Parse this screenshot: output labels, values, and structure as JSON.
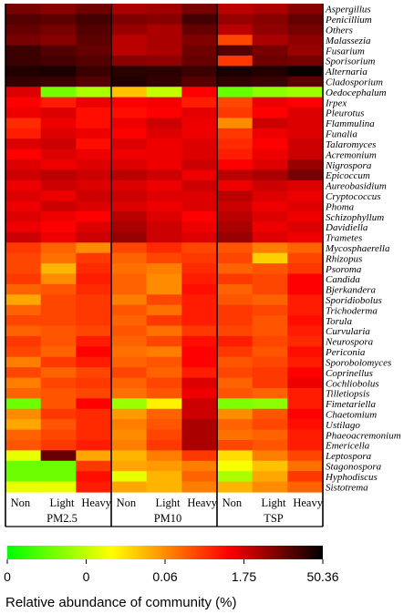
{
  "chart_data": {
    "type": "heatmap",
    "groups": [
      {
        "name": "PM2.5",
        "columns": [
          "Non",
          "Light",
          "Heavy"
        ]
      },
      {
        "name": "PM10",
        "columns": [
          "Non",
          "Light",
          "Heavy"
        ]
      },
      {
        "name": "TSP",
        "columns": [
          "Non",
          "Light",
          "Heavy"
        ]
      }
    ],
    "rows": [
      "Aspergillus",
      "Penicillium",
      "Others",
      "Malassezia",
      "Fusarium",
      "Sporisorium",
      "Alternaria",
      "Cladosporium",
      "Oedocephalum",
      "Irpex",
      "Pleurotus",
      "Flammulina",
      "Funalia",
      "Talaromyces",
      "Acremonium",
      "Nigrospora",
      "Epicoccum",
      "Aureobasidium",
      "Cryptococcus",
      "Phoma",
      "Schizophyllum",
      "Davidiella",
      "Trametes",
      "Mycosphaerella",
      "Rhizopus",
      "Psoroma",
      "Candida",
      "Bjerkandera",
      "Sporidiobolus",
      "Trichoderma",
      "Torula",
      "Curvularia",
      "Neurospora",
      "Periconia",
      "Sporobolomyces",
      "Coprinellus",
      "Cochliobolus",
      "Tilletiopsis",
      "Fimetariella",
      "Chaetomium",
      "Ustilago",
      "Phaeoacremonium",
      "Emericella",
      "Leptospora",
      "Stagonospora",
      "Hyphodiscus",
      "Sistotrema"
    ],
    "values": [
      [
        0.86,
        0.84,
        0.87,
        0.8,
        0.81,
        0.86,
        0.78,
        0.8,
        0.84
      ],
      [
        0.9,
        0.89,
        0.92,
        0.85,
        0.84,
        0.92,
        0.82,
        0.84,
        0.88
      ],
      [
        0.88,
        0.86,
        0.9,
        0.82,
        0.8,
        0.88,
        0.78,
        0.83,
        0.86
      ],
      [
        0.86,
        0.84,
        0.89,
        0.78,
        0.8,
        0.85,
        0.6,
        0.8,
        0.83
      ],
      [
        0.93,
        0.9,
        0.88,
        0.78,
        0.8,
        0.87,
        0.9,
        0.86,
        0.82
      ],
      [
        0.93,
        0.92,
        0.9,
        0.84,
        0.83,
        0.88,
        0.62,
        0.87,
        0.86
      ],
      [
        0.96,
        0.97,
        0.93,
        0.95,
        0.95,
        0.93,
        0.97,
        0.96,
        0.99
      ],
      [
        0.94,
        0.93,
        0.9,
        0.96,
        0.94,
        0.9,
        0.94,
        0.93,
        0.89
      ],
      [
        0.74,
        0.15,
        0.22,
        0.42,
        0.25,
        0.7,
        0.13,
        0.18,
        0.2
      ],
      [
        0.7,
        0.66,
        0.72,
        0.7,
        0.71,
        0.66,
        0.6,
        0.72,
        0.7
      ],
      [
        0.72,
        0.74,
        0.68,
        0.68,
        0.7,
        0.73,
        0.62,
        0.7,
        0.74
      ],
      [
        0.64,
        0.72,
        0.68,
        0.72,
        0.76,
        0.72,
        0.5,
        0.76,
        0.74
      ],
      [
        0.66,
        0.74,
        0.72,
        0.7,
        0.74,
        0.72,
        0.62,
        0.72,
        0.74
      ],
      [
        0.74,
        0.76,
        0.68,
        0.74,
        0.72,
        0.74,
        0.64,
        0.7,
        0.76
      ],
      [
        0.7,
        0.74,
        0.72,
        0.72,
        0.72,
        0.74,
        0.66,
        0.72,
        0.76
      ],
      [
        0.74,
        0.72,
        0.74,
        0.74,
        0.72,
        0.76,
        0.7,
        0.74,
        0.82
      ],
      [
        0.76,
        0.78,
        0.76,
        0.78,
        0.76,
        0.72,
        0.78,
        0.8,
        0.86
      ],
      [
        0.72,
        0.76,
        0.74,
        0.74,
        0.72,
        0.76,
        0.72,
        0.76,
        0.74
      ],
      [
        0.74,
        0.72,
        0.76,
        0.76,
        0.74,
        0.74,
        0.78,
        0.74,
        0.72
      ],
      [
        0.72,
        0.76,
        0.74,
        0.74,
        0.72,
        0.74,
        0.76,
        0.72,
        0.74
      ],
      [
        0.74,
        0.72,
        0.7,
        0.78,
        0.74,
        0.7,
        0.78,
        0.74,
        0.72
      ],
      [
        0.72,
        0.7,
        0.74,
        0.8,
        0.76,
        0.72,
        0.8,
        0.72,
        0.74
      ],
      [
        0.76,
        0.72,
        0.76,
        0.82,
        0.76,
        0.74,
        0.82,
        0.74,
        0.72
      ],
      [
        0.62,
        0.56,
        0.5,
        0.6,
        0.64,
        0.6,
        0.58,
        0.52,
        0.56
      ],
      [
        0.6,
        0.54,
        0.62,
        0.56,
        0.6,
        0.62,
        0.6,
        0.4,
        0.6
      ],
      [
        0.6,
        0.44,
        0.64,
        0.54,
        0.52,
        0.64,
        0.56,
        0.58,
        0.62
      ],
      [
        0.62,
        0.5,
        0.66,
        0.56,
        0.5,
        0.66,
        0.62,
        0.6,
        0.7
      ],
      [
        0.56,
        0.58,
        0.64,
        0.56,
        0.5,
        0.68,
        0.56,
        0.6,
        0.7
      ],
      [
        0.46,
        0.6,
        0.62,
        0.52,
        0.6,
        0.66,
        0.58,
        0.56,
        0.66
      ],
      [
        0.56,
        0.6,
        0.62,
        0.58,
        0.54,
        0.66,
        0.62,
        0.6,
        0.66
      ],
      [
        0.6,
        0.6,
        0.62,
        0.56,
        0.62,
        0.66,
        0.62,
        0.58,
        0.68
      ],
      [
        0.56,
        0.58,
        0.6,
        0.58,
        0.54,
        0.62,
        0.6,
        0.58,
        0.66
      ],
      [
        0.62,
        0.58,
        0.66,
        0.56,
        0.6,
        0.68,
        0.66,
        0.6,
        0.64
      ],
      [
        0.6,
        0.56,
        0.7,
        0.54,
        0.52,
        0.7,
        0.62,
        0.58,
        0.68
      ],
      [
        0.52,
        0.62,
        0.66,
        0.56,
        0.58,
        0.7,
        0.58,
        0.6,
        0.66
      ],
      [
        0.6,
        0.56,
        0.6,
        0.6,
        0.56,
        0.66,
        0.6,
        0.62,
        0.7
      ],
      [
        0.52,
        0.6,
        0.62,
        0.56,
        0.6,
        0.74,
        0.56,
        0.62,
        0.72
      ],
      [
        0.56,
        0.58,
        0.6,
        0.54,
        0.58,
        0.72,
        0.58,
        0.56,
        0.66
      ],
      [
        0.14,
        0.58,
        0.7,
        0.2,
        0.35,
        0.76,
        0.16,
        0.18,
        0.66
      ],
      [
        0.5,
        0.62,
        0.64,
        0.48,
        0.56,
        0.76,
        0.5,
        0.58,
        0.7
      ],
      [
        0.46,
        0.58,
        0.64,
        0.52,
        0.58,
        0.8,
        0.56,
        0.6,
        0.68
      ],
      [
        0.56,
        0.6,
        0.64,
        0.5,
        0.6,
        0.8,
        0.54,
        0.56,
        0.66
      ],
      [
        0.58,
        0.62,
        0.66,
        0.52,
        0.62,
        0.8,
        0.6,
        0.58,
        0.66
      ],
      [
        0.3,
        0.88,
        0.46,
        0.44,
        0.52,
        0.62,
        0.38,
        0.52,
        0.6
      ],
      [
        0.14,
        0.14,
        0.62,
        0.46,
        0.48,
        0.52,
        0.32,
        0.42,
        0.54
      ],
      [
        0.14,
        0.14,
        0.68,
        0.3,
        0.44,
        0.56,
        0.22,
        0.46,
        0.62
      ],
      [
        0.3,
        0.3,
        0.66,
        0.46,
        0.44,
        0.52,
        0.44,
        0.5,
        0.56
      ]
    ],
    "colorscale": {
      "ticks": [
        "0",
        "0",
        "0.06",
        "1.75",
        "50.36"
      ],
      "colors": [
        "#00ff00",
        "#ffff00",
        "#ff8c00",
        "#ff0000",
        "#000000"
      ],
      "title": "Relative abundance of community (%)"
    }
  }
}
